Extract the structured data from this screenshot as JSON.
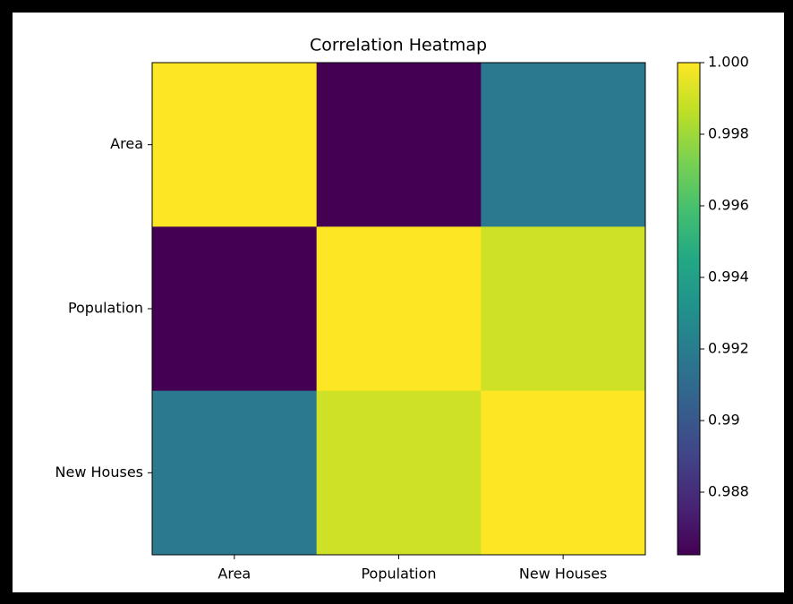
{
  "chart_data": {
    "type": "heatmap",
    "title": "Correlation Heatmap",
    "x_categories": [
      "Area",
      "Population",
      "New Houses"
    ],
    "y_categories": [
      "Area",
      "Population",
      "New Houses"
    ],
    "z": [
      [
        1,
        0.98625,
        0.9918
      ],
      [
        0.98625,
        1,
        0.999
      ],
      [
        0.9918,
        0.999,
        1
      ]
    ],
    "colormap": "viridis",
    "clim": [
      0.98625,
      1
    ],
    "cticks": [
      0.988,
      0.99,
      0.992,
      0.994,
      0.996,
      0.998,
      {
        "value": 1,
        "label": "1.000"
      }
    ]
  }
}
